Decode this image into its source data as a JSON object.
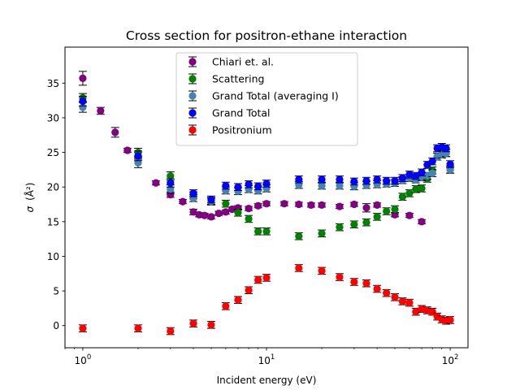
{
  "chart_data": {
    "type": "scatter",
    "title": "Cross section for positron-ethane interaction",
    "xlabel": "Incident energy (eV)",
    "ylabel_prefix": "σ",
    "ylabel_unit": "(Å²)",
    "x_scale": "log",
    "xlim": [
      0.8,
      125
    ],
    "ylim": [
      -3.2,
      40.2
    ],
    "x_ticks": [
      {
        "value": 1,
        "base": "10",
        "exp": "0"
      },
      {
        "value": 10,
        "base": "10",
        "exp": "1"
      },
      {
        "value": 100,
        "base": "10",
        "exp": "2"
      }
    ],
    "y_ticks": [
      0,
      5,
      10,
      15,
      20,
      25,
      30,
      35
    ],
    "grid": false,
    "legend_position": "top-center",
    "series": [
      {
        "name": "Chiari et. al.",
        "color": "#800080",
        "points": [
          {
            "x": 1.0,
            "y": 35.7,
            "err": 1.0
          },
          {
            "x": 1.25,
            "y": 31.0,
            "err": 0.5
          },
          {
            "x": 1.5,
            "y": 27.9,
            "err": 0.7
          },
          {
            "x": 1.75,
            "y": 25.3,
            "err": 0.3
          },
          {
            "x": 2.0,
            "y": 24.5,
            "err": 0.5
          },
          {
            "x": 2.5,
            "y": 20.6,
            "err": 0.3
          },
          {
            "x": 3.0,
            "y": 18.9,
            "err": 0.4
          },
          {
            "x": 3.5,
            "y": 17.9,
            "err": 0.3
          },
          {
            "x": 4.0,
            "y": 16.4,
            "err": 0.4
          },
          {
            "x": 4.3,
            "y": 16.0,
            "err": 0.3
          },
          {
            "x": 4.6,
            "y": 15.9,
            "err": 0.3
          },
          {
            "x": 5.0,
            "y": 15.7,
            "err": 0.3
          },
          {
            "x": 5.5,
            "y": 16.2,
            "err": 0.3
          },
          {
            "x": 6.0,
            "y": 16.4,
            "err": 0.3
          },
          {
            "x": 6.5,
            "y": 16.8,
            "err": 0.3
          },
          {
            "x": 7.0,
            "y": 17.0,
            "err": 0.3
          },
          {
            "x": 8.0,
            "y": 16.9,
            "err": 0.3
          },
          {
            "x": 9.0,
            "y": 17.3,
            "err": 0.3
          },
          {
            "x": 10.0,
            "y": 17.6,
            "err": 0.3
          },
          {
            "x": 12.5,
            "y": 17.6,
            "err": 0.3
          },
          {
            "x": 15.0,
            "y": 17.5,
            "err": 0.3
          },
          {
            "x": 17.5,
            "y": 17.4,
            "err": 0.3
          },
          {
            "x": 20.0,
            "y": 17.4,
            "err": 0.3
          },
          {
            "x": 25.0,
            "y": 17.2,
            "err": 0.3
          },
          {
            "x": 30.0,
            "y": 17.5,
            "err": 0.3
          },
          {
            "x": 35.0,
            "y": 17.0,
            "err": 0.6
          },
          {
            "x": 40.0,
            "y": 17.4,
            "err": 0.3
          },
          {
            "x": 50.0,
            "y": 16.0,
            "err": 0.3
          },
          {
            "x": 60.0,
            "y": 15.9,
            "err": 0.3
          },
          {
            "x": 70.0,
            "y": 15.0,
            "err": 0.3
          }
        ]
      },
      {
        "name": "Scattering",
        "color": "#008000",
        "points": [
          {
            "x": 1.0,
            "y": 32.9,
            "err": 0.6
          },
          {
            "x": 2.0,
            "y": 25.0,
            "err": 0.6
          },
          {
            "x": 3.0,
            "y": 21.6,
            "err": 0.6
          },
          {
            "x": 4.0,
            "y": 18.8,
            "err": 0.5
          },
          {
            "x": 5.0,
            "y": 18.0,
            "err": 0.5
          },
          {
            "x": 6.0,
            "y": 17.6,
            "err": 0.5
          },
          {
            "x": 7.0,
            "y": 16.3,
            "err": 0.5
          },
          {
            "x": 8.0,
            "y": 15.4,
            "err": 0.5
          },
          {
            "x": 9.0,
            "y": 13.6,
            "err": 0.5
          },
          {
            "x": 10.0,
            "y": 13.6,
            "err": 0.5
          },
          {
            "x": 15.0,
            "y": 12.9,
            "err": 0.5
          },
          {
            "x": 20.0,
            "y": 13.3,
            "err": 0.5
          },
          {
            "x": 25.0,
            "y": 14.2,
            "err": 0.5
          },
          {
            "x": 30.0,
            "y": 14.6,
            "err": 0.5
          },
          {
            "x": 35.0,
            "y": 14.9,
            "err": 0.5
          },
          {
            "x": 40.0,
            "y": 15.7,
            "err": 0.5
          },
          {
            "x": 45.0,
            "y": 16.5,
            "err": 0.5
          },
          {
            "x": 50.0,
            "y": 16.8,
            "err": 0.5
          },
          {
            "x": 55.0,
            "y": 18.6,
            "err": 0.5
          },
          {
            "x": 60.0,
            "y": 19.1,
            "err": 0.5
          },
          {
            "x": 65.0,
            "y": 19.7,
            "err": 0.5
          },
          {
            "x": 70.0,
            "y": 19.8,
            "err": 0.5
          },
          {
            "x": 75.0,
            "y": 21.2,
            "err": 0.5
          },
          {
            "x": 80.0,
            "y": 22.4,
            "err": 0.5
          },
          {
            "x": 85.0,
            "y": 24.4,
            "err": 0.5
          },
          {
            "x": 90.0,
            "y": 24.7,
            "err": 0.5
          },
          {
            "x": 95.0,
            "y": 24.9,
            "err": 0.5
          },
          {
            "x": 100.0,
            "y": 22.5,
            "err": 0.5
          }
        ]
      },
      {
        "name": "Grand Total (averaging I)",
        "color": "#4682b4",
        "points": [
          {
            "x": 1.0,
            "y": 31.5,
            "err": 0.7
          },
          {
            "x": 2.0,
            "y": 23.5,
            "err": 0.7
          },
          {
            "x": 3.0,
            "y": 19.7,
            "err": 0.6
          },
          {
            "x": 4.0,
            "y": 18.4,
            "err": 0.5
          },
          {
            "x": 5.0,
            "y": 17.9,
            "err": 0.5
          },
          {
            "x": 6.0,
            "y": 19.5,
            "err": 0.5
          },
          {
            "x": 7.0,
            "y": 19.4,
            "err": 0.5
          },
          {
            "x": 8.0,
            "y": 19.7,
            "err": 0.5
          },
          {
            "x": 9.0,
            "y": 19.5,
            "err": 0.5
          },
          {
            "x": 10.0,
            "y": 19.8,
            "err": 0.5
          },
          {
            "x": 15.0,
            "y": 20.3,
            "err": 0.5
          },
          {
            "x": 20.0,
            "y": 20.2,
            "err": 0.5
          },
          {
            "x": 25.0,
            "y": 20.2,
            "err": 0.5
          },
          {
            "x": 30.0,
            "y": 20.1,
            "err": 0.5
          },
          {
            "x": 35.0,
            "y": 20.3,
            "err": 0.5
          },
          {
            "x": 40.0,
            "y": 20.4,
            "err": 0.5
          },
          {
            "x": 45.0,
            "y": 20.5,
            "err": 0.5
          },
          {
            "x": 50.0,
            "y": 20.6,
            "err": 0.5
          },
          {
            "x": 55.0,
            "y": 21.0,
            "err": 0.5
          },
          {
            "x": 60.0,
            "y": 21.3,
            "err": 0.5
          },
          {
            "x": 65.0,
            "y": 21.1,
            "err": 0.5
          },
          {
            "x": 70.0,
            "y": 21.4,
            "err": 0.5
          },
          {
            "x": 75.0,
            "y": 21.6,
            "err": 0.5
          },
          {
            "x": 80.0,
            "y": 22.0,
            "err": 0.5
          },
          {
            "x": 85.0,
            "y": 24.4,
            "err": 0.5
          },
          {
            "x": 90.0,
            "y": 24.7,
            "err": 0.5
          },
          {
            "x": 95.0,
            "y": 24.9,
            "err": 0.5
          },
          {
            "x": 100.0,
            "y": 22.5,
            "err": 0.5
          }
        ]
      },
      {
        "name": "Grand Total",
        "color": "#0000ff",
        "points": [
          {
            "x": 1.0,
            "y": 32.4,
            "err": 0.7
          },
          {
            "x": 2.0,
            "y": 24.5,
            "err": 0.7
          },
          {
            "x": 3.0,
            "y": 20.6,
            "err": 0.6
          },
          {
            "x": 4.0,
            "y": 19.1,
            "err": 0.5
          },
          {
            "x": 5.0,
            "y": 18.2,
            "err": 0.5
          },
          {
            "x": 6.0,
            "y": 20.2,
            "err": 0.5
          },
          {
            "x": 7.0,
            "y": 20.0,
            "err": 0.5
          },
          {
            "x": 8.0,
            "y": 20.4,
            "err": 0.5
          },
          {
            "x": 9.0,
            "y": 20.1,
            "err": 0.5
          },
          {
            "x": 10.0,
            "y": 20.5,
            "err": 0.5
          },
          {
            "x": 15.0,
            "y": 21.1,
            "err": 0.5
          },
          {
            "x": 20.0,
            "y": 21.1,
            "err": 0.5
          },
          {
            "x": 25.0,
            "y": 21.1,
            "err": 0.5
          },
          {
            "x": 30.0,
            "y": 20.8,
            "err": 0.5
          },
          {
            "x": 35.0,
            "y": 20.9,
            "err": 0.5
          },
          {
            "x": 40.0,
            "y": 21.1,
            "err": 0.5
          },
          {
            "x": 45.0,
            "y": 20.9,
            "err": 0.5
          },
          {
            "x": 50.0,
            "y": 20.9,
            "err": 0.5
          },
          {
            "x": 55.0,
            "y": 21.3,
            "err": 0.5
          },
          {
            "x": 60.0,
            "y": 21.8,
            "err": 0.5
          },
          {
            "x": 65.0,
            "y": 21.6,
            "err": 0.5
          },
          {
            "x": 70.0,
            "y": 22.1,
            "err": 0.5
          },
          {
            "x": 75.0,
            "y": 23.2,
            "err": 0.5
          },
          {
            "x": 80.0,
            "y": 23.7,
            "err": 0.5
          },
          {
            "x": 85.0,
            "y": 25.6,
            "err": 0.5
          },
          {
            "x": 90.0,
            "y": 25.8,
            "err": 0.5
          },
          {
            "x": 95.0,
            "y": 25.6,
            "err": 0.5
          },
          {
            "x": 100.0,
            "y": 23.3,
            "err": 0.5
          }
        ]
      },
      {
        "name": "Positronium",
        "color": "#ff0000",
        "points": [
          {
            "x": 1.0,
            "y": -0.4,
            "err": 0.5
          },
          {
            "x": 2.0,
            "y": -0.4,
            "err": 0.5
          },
          {
            "x": 3.0,
            "y": -0.8,
            "err": 0.5
          },
          {
            "x": 4.0,
            "y": 0.3,
            "err": 0.5
          },
          {
            "x": 5.0,
            "y": 0.1,
            "err": 0.5
          },
          {
            "x": 6.0,
            "y": 2.8,
            "err": 0.5
          },
          {
            "x": 7.0,
            "y": 3.7,
            "err": 0.5
          },
          {
            "x": 8.0,
            "y": 5.1,
            "err": 0.5
          },
          {
            "x": 9.0,
            "y": 6.6,
            "err": 0.5
          },
          {
            "x": 10.0,
            "y": 6.9,
            "err": 0.5
          },
          {
            "x": 15.0,
            "y": 8.3,
            "err": 0.5
          },
          {
            "x": 20.0,
            "y": 7.9,
            "err": 0.5
          },
          {
            "x": 25.0,
            "y": 7.0,
            "err": 0.5
          },
          {
            "x": 30.0,
            "y": 6.3,
            "err": 0.5
          },
          {
            "x": 35.0,
            "y": 6.1,
            "err": 0.5
          },
          {
            "x": 40.0,
            "y": 5.3,
            "err": 0.5
          },
          {
            "x": 45.0,
            "y": 4.7,
            "err": 0.5
          },
          {
            "x": 50.0,
            "y": 4.1,
            "err": 0.5
          },
          {
            "x": 55.0,
            "y": 3.5,
            "err": 0.5
          },
          {
            "x": 60.0,
            "y": 3.3,
            "err": 0.5
          },
          {
            "x": 65.0,
            "y": 2.0,
            "err": 0.5
          },
          {
            "x": 70.0,
            "y": 2.4,
            "err": 0.5
          },
          {
            "x": 75.0,
            "y": 2.2,
            "err": 0.5
          },
          {
            "x": 80.0,
            "y": 2.0,
            "err": 0.5
          },
          {
            "x": 85.0,
            "y": 1.3,
            "err": 0.5
          },
          {
            "x": 90.0,
            "y": 0.9,
            "err": 0.5
          },
          {
            "x": 95.0,
            "y": 0.7,
            "err": 0.5
          },
          {
            "x": 100.0,
            "y": 0.8,
            "err": 0.5
          }
        ]
      }
    ]
  }
}
